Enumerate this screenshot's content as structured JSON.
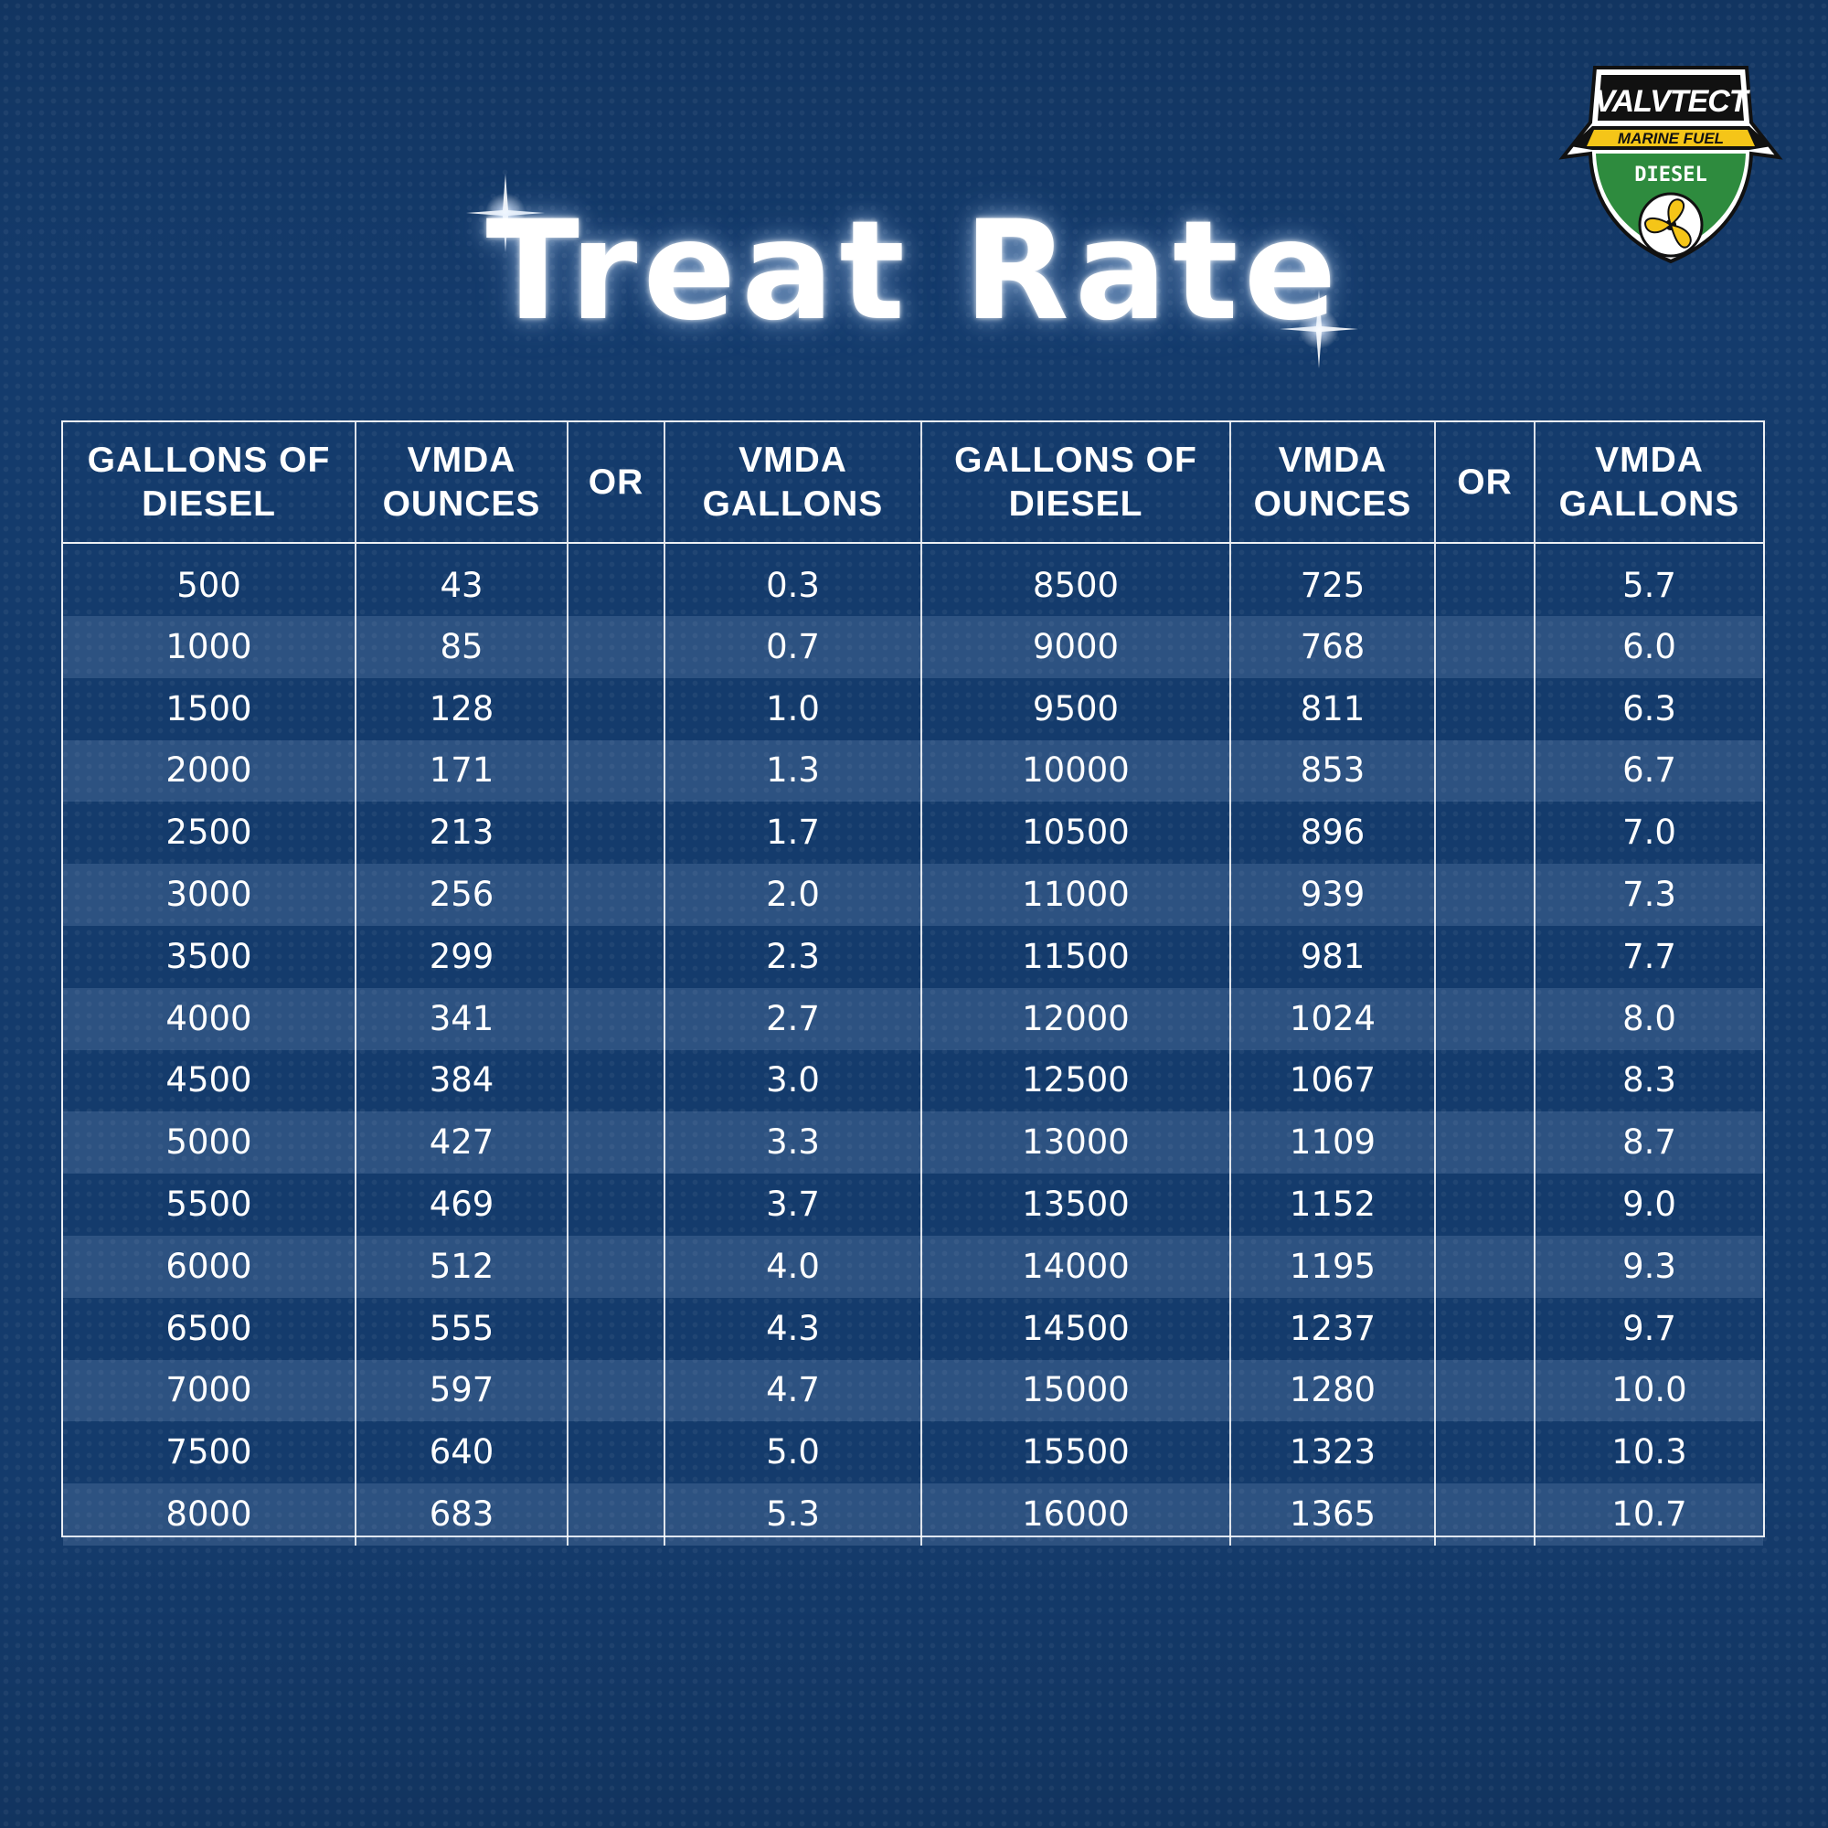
{
  "title": "Treat Rate",
  "logo": {
    "brand": "VALVTECT",
    "line2": "MARINE FUEL",
    "line3": "DIESEL"
  },
  "colors": {
    "background": "#143b6c",
    "text": "#ffffff",
    "grid": "#ffffff",
    "stripe": "#3a5f8e",
    "logo_yellow": "#f5c518",
    "logo_green": "#2e8b3e",
    "logo_black": "#111111"
  },
  "headers": [
    [
      "GALLONS OF",
      "DIESEL"
    ],
    [
      "VMDA",
      "OUNCES"
    ],
    [
      "OR"
    ],
    [
      "VMDA",
      "GALLONS"
    ],
    [
      "GALLONS OF",
      "DIESEL"
    ],
    [
      "VMDA",
      "OUNCES"
    ],
    [
      "OR"
    ],
    [
      "VMDA",
      "GALLONS"
    ]
  ],
  "chart_data": {
    "type": "table",
    "title": "Treat Rate",
    "columns": [
      "GALLONS OF DIESEL",
      "VMDA OUNCES",
      "OR",
      "VMDA GALLONS",
      "GALLONS OF DIESEL",
      "VMDA OUNCES",
      "OR",
      "VMDA GALLONS"
    ],
    "rows": [
      [
        "500",
        "43",
        "",
        "0.3",
        "8500",
        "725",
        "",
        "5.7"
      ],
      [
        "1000",
        "85",
        "",
        "0.7",
        "9000",
        "768",
        "",
        "6.0"
      ],
      [
        "1500",
        "128",
        "",
        "1.0",
        "9500",
        "811",
        "",
        "6.3"
      ],
      [
        "2000",
        "171",
        "",
        "1.3",
        "10000",
        "853",
        "",
        "6.7"
      ],
      [
        "2500",
        "213",
        "",
        "1.7",
        "10500",
        "896",
        "",
        "7.0"
      ],
      [
        "3000",
        "256",
        "",
        "2.0",
        "11000",
        "939",
        "",
        "7.3"
      ],
      [
        "3500",
        "299",
        "",
        "2.3",
        "11500",
        "981",
        "",
        "7.7"
      ],
      [
        "4000",
        "341",
        "",
        "2.7",
        "12000",
        "1024",
        "",
        "8.0"
      ],
      [
        "4500",
        "384",
        "",
        "3.0",
        "12500",
        "1067",
        "",
        "8.3"
      ],
      [
        "5000",
        "427",
        "",
        "3.3",
        "13000",
        "1109",
        "",
        "8.7"
      ],
      [
        "5500",
        "469",
        "",
        "3.7",
        "13500",
        "1152",
        "",
        "9.0"
      ],
      [
        "6000",
        "512",
        "",
        "4.0",
        "14000",
        "1195",
        "",
        "9.3"
      ],
      [
        "6500",
        "555",
        "",
        "4.3",
        "14500",
        "1237",
        "",
        "9.7"
      ],
      [
        "7000",
        "597",
        "",
        "4.7",
        "15000",
        "1280",
        "",
        "10.0"
      ],
      [
        "7500",
        "640",
        "",
        "5.0",
        "15500",
        "1323",
        "",
        "10.3"
      ],
      [
        "8000",
        "683",
        "",
        "5.3",
        "16000",
        "1365",
        "",
        "10.7"
      ]
    ]
  }
}
